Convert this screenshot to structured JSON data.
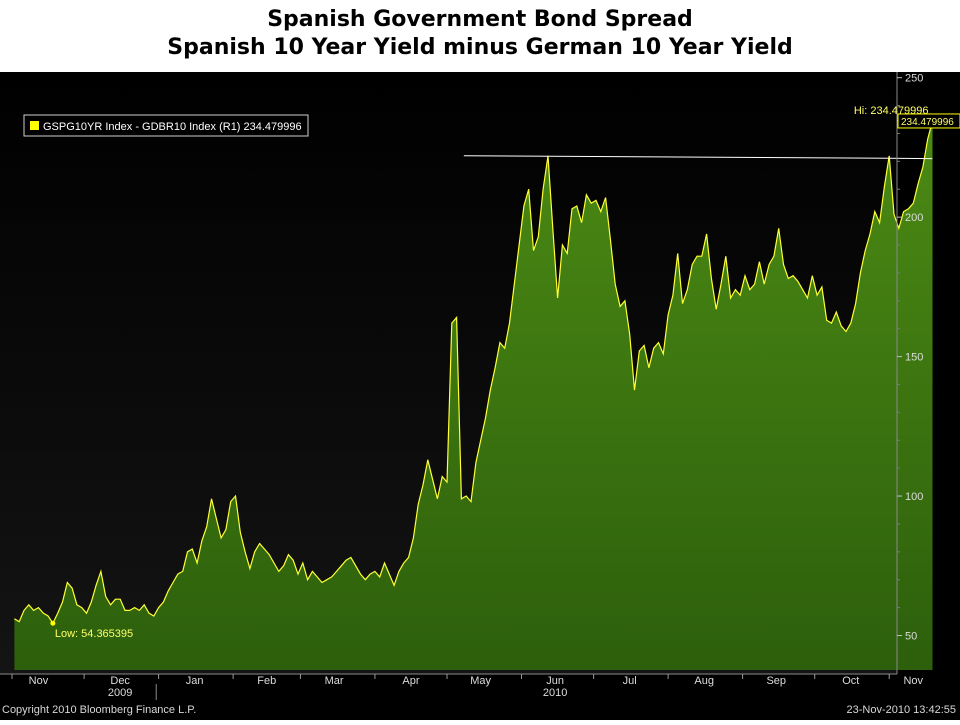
{
  "title": {
    "line1": "Spanish Government Bond Spread",
    "line2": "Spanish 10 Year Yield minus German 10 Year Yield"
  },
  "legend": {
    "label": "GSPG10YR Index - GDBR10 Index (R1) 234.479996",
    "color": "#ffff00"
  },
  "annotations": {
    "low": "Low: 54.365395",
    "hi": "Hi: 234.479996",
    "last_value": "234.479996"
  },
  "footer": {
    "copyright": "Copyright 2010 Bloomberg Finance L.P.",
    "timestamp": "23-Nov-2010 13:42:55"
  },
  "colors": {
    "area": "#3f7a12",
    "line": "#ffff33",
    "background": "#000000",
    "trendline": "#ffffff"
  },
  "chart_data": {
    "type": "area",
    "x_tick_labels": [
      "Nov",
      "Dec",
      "Jan",
      "Feb",
      "Mar",
      "Apr",
      "May",
      "Jun",
      "Jul",
      "Aug",
      "Sep",
      "Oct",
      "Nov"
    ],
    "year_labels": [
      "2009",
      "2010"
    ],
    "y_ticks": [
      50,
      100,
      150,
      200,
      250
    ],
    "ylim": [
      40,
      252
    ],
    "axis_side": "right",
    "grid": false,
    "legend_position": "top-left",
    "trendline": {
      "start": [
        "2010-05-08",
        222
      ],
      "end": [
        "2010-11-19",
        221
      ]
    },
    "series": [
      {
        "values": [
          [
            "2009-11-02",
            56
          ],
          [
            "2009-11-04",
            55
          ],
          [
            "2009-11-06",
            59
          ],
          [
            "2009-11-08",
            61
          ],
          [
            "2009-11-10",
            59
          ],
          [
            "2009-11-12",
            60
          ],
          [
            "2009-11-14",
            58
          ],
          [
            "2009-11-16",
            57
          ],
          [
            "2009-11-18",
            54.4
          ],
          [
            "2009-11-20",
            58
          ],
          [
            "2009-11-22",
            62
          ],
          [
            "2009-11-24",
            69
          ],
          [
            "2009-11-26",
            67
          ],
          [
            "2009-11-28",
            61
          ],
          [
            "2009-11-30",
            60
          ],
          [
            "2009-12-02",
            58
          ],
          [
            "2009-12-04",
            62
          ],
          [
            "2009-12-06",
            68
          ],
          [
            "2009-12-08",
            73
          ],
          [
            "2009-12-10",
            64
          ],
          [
            "2009-12-12",
            61
          ],
          [
            "2009-12-14",
            63
          ],
          [
            "2009-12-16",
            63
          ],
          [
            "2009-12-18",
            59
          ],
          [
            "2009-12-20",
            59
          ],
          [
            "2009-12-22",
            60
          ],
          [
            "2009-12-24",
            59
          ],
          [
            "2009-12-26",
            61
          ],
          [
            "2009-12-28",
            58
          ],
          [
            "2009-12-30",
            57
          ],
          [
            "2010-01-01",
            60
          ],
          [
            "2010-01-03",
            62
          ],
          [
            "2010-01-05",
            66
          ],
          [
            "2010-01-07",
            69
          ],
          [
            "2010-01-09",
            72
          ],
          [
            "2010-01-11",
            73
          ],
          [
            "2010-01-13",
            80
          ],
          [
            "2010-01-15",
            81
          ],
          [
            "2010-01-17",
            76
          ],
          [
            "2010-01-19",
            84
          ],
          [
            "2010-01-21",
            89
          ],
          [
            "2010-01-23",
            99
          ],
          [
            "2010-01-25",
            92
          ],
          [
            "2010-01-27",
            85
          ],
          [
            "2010-01-29",
            88
          ],
          [
            "2010-01-31",
            98
          ],
          [
            "2010-02-02",
            100
          ],
          [
            "2010-02-04",
            87
          ],
          [
            "2010-02-06",
            80
          ],
          [
            "2010-02-08",
            74
          ],
          [
            "2010-02-10",
            80
          ],
          [
            "2010-02-12",
            83
          ],
          [
            "2010-02-14",
            81
          ],
          [
            "2010-02-16",
            79
          ],
          [
            "2010-02-18",
            76
          ],
          [
            "2010-02-20",
            73
          ],
          [
            "2010-02-22",
            75
          ],
          [
            "2010-02-24",
            79
          ],
          [
            "2010-02-26",
            77
          ],
          [
            "2010-02-28",
            72
          ],
          [
            "2010-03-02",
            76
          ],
          [
            "2010-03-04",
            70
          ],
          [
            "2010-03-06",
            73
          ],
          [
            "2010-03-08",
            71
          ],
          [
            "2010-03-10",
            69
          ],
          [
            "2010-03-12",
            70
          ],
          [
            "2010-03-14",
            71
          ],
          [
            "2010-03-16",
            73
          ],
          [
            "2010-03-18",
            75
          ],
          [
            "2010-03-20",
            77
          ],
          [
            "2010-03-22",
            78
          ],
          [
            "2010-03-24",
            75
          ],
          [
            "2010-03-26",
            72
          ],
          [
            "2010-03-28",
            70
          ],
          [
            "2010-03-30",
            72
          ],
          [
            "2010-04-01",
            73
          ],
          [
            "2010-04-03",
            71
          ],
          [
            "2010-04-05",
            76
          ],
          [
            "2010-04-07",
            72
          ],
          [
            "2010-04-09",
            68
          ],
          [
            "2010-04-11",
            73
          ],
          [
            "2010-04-13",
            76
          ],
          [
            "2010-04-15",
            78
          ],
          [
            "2010-04-17",
            85
          ],
          [
            "2010-04-19",
            97
          ],
          [
            "2010-04-21",
            104
          ],
          [
            "2010-04-23",
            113
          ],
          [
            "2010-04-25",
            106
          ],
          [
            "2010-04-27",
            99
          ],
          [
            "2010-04-29",
            107
          ],
          [
            "2010-05-01",
            105
          ],
          [
            "2010-05-03",
            162
          ],
          [
            "2010-05-05",
            164
          ],
          [
            "2010-05-07",
            99
          ],
          [
            "2010-05-09",
            100
          ],
          [
            "2010-05-11",
            98
          ],
          [
            "2010-05-13",
            112
          ],
          [
            "2010-05-15",
            120
          ],
          [
            "2010-05-17",
            128
          ],
          [
            "2010-05-19",
            138
          ],
          [
            "2010-05-21",
            146
          ],
          [
            "2010-05-23",
            155
          ],
          [
            "2010-05-25",
            153
          ],
          [
            "2010-05-27",
            162
          ],
          [
            "2010-05-29",
            176
          ],
          [
            "2010-05-31",
            190
          ],
          [
            "2010-06-02",
            204
          ],
          [
            "2010-06-04",
            210
          ],
          [
            "2010-06-06",
            188
          ],
          [
            "2010-06-08",
            193
          ],
          [
            "2010-06-10",
            210
          ],
          [
            "2010-06-12",
            222
          ],
          [
            "2010-06-14",
            196
          ],
          [
            "2010-06-16",
            171
          ],
          [
            "2010-06-18",
            190
          ],
          [
            "2010-06-20",
            187
          ],
          [
            "2010-06-22",
            203
          ],
          [
            "2010-06-24",
            204
          ],
          [
            "2010-06-26",
            198
          ],
          [
            "2010-06-28",
            208
          ],
          [
            "2010-06-30",
            205
          ],
          [
            "2010-07-02",
            206
          ],
          [
            "2010-07-04",
            202
          ],
          [
            "2010-07-06",
            207
          ],
          [
            "2010-07-08",
            192
          ],
          [
            "2010-07-10",
            176
          ],
          [
            "2010-07-12",
            168
          ],
          [
            "2010-07-14",
            170
          ],
          [
            "2010-07-16",
            158
          ],
          [
            "2010-07-18",
            138
          ],
          [
            "2010-07-20",
            152
          ],
          [
            "2010-07-22",
            154
          ],
          [
            "2010-07-24",
            146
          ],
          [
            "2010-07-26",
            153
          ],
          [
            "2010-07-28",
            155
          ],
          [
            "2010-07-30",
            151
          ],
          [
            "2010-08-01",
            165
          ],
          [
            "2010-08-03",
            172
          ],
          [
            "2010-08-05",
            187
          ],
          [
            "2010-08-07",
            169
          ],
          [
            "2010-08-09",
            174
          ],
          [
            "2010-08-11",
            183
          ],
          [
            "2010-08-13",
            186
          ],
          [
            "2010-08-15",
            186
          ],
          [
            "2010-08-17",
            194
          ],
          [
            "2010-08-19",
            178
          ],
          [
            "2010-08-21",
            167
          ],
          [
            "2010-08-23",
            176
          ],
          [
            "2010-08-25",
            186
          ],
          [
            "2010-08-27",
            171
          ],
          [
            "2010-08-29",
            174
          ],
          [
            "2010-08-31",
            172
          ],
          [
            "2010-09-02",
            179
          ],
          [
            "2010-09-04",
            174
          ],
          [
            "2010-09-06",
            176
          ],
          [
            "2010-09-08",
            184
          ],
          [
            "2010-09-10",
            176
          ],
          [
            "2010-09-12",
            183
          ],
          [
            "2010-09-14",
            186
          ],
          [
            "2010-09-16",
            196
          ],
          [
            "2010-09-18",
            183
          ],
          [
            "2010-09-20",
            178
          ],
          [
            "2010-09-22",
            179
          ],
          [
            "2010-09-24",
            177
          ],
          [
            "2010-09-26",
            174
          ],
          [
            "2010-09-28",
            171
          ],
          [
            "2010-09-30",
            179
          ],
          [
            "2010-10-02",
            172
          ],
          [
            "2010-10-04",
            175
          ],
          [
            "2010-10-06",
            163
          ],
          [
            "2010-10-08",
            162
          ],
          [
            "2010-10-10",
            166
          ],
          [
            "2010-10-12",
            161
          ],
          [
            "2010-10-14",
            159
          ],
          [
            "2010-10-16",
            162
          ],
          [
            "2010-10-18",
            169
          ],
          [
            "2010-10-20",
            180
          ],
          [
            "2010-10-22",
            188
          ],
          [
            "2010-10-24",
            194
          ],
          [
            "2010-10-26",
            202
          ],
          [
            "2010-10-28",
            198
          ],
          [
            "2010-10-30",
            211
          ],
          [
            "2010-11-01",
            222
          ],
          [
            "2010-11-03",
            201
          ],
          [
            "2010-11-05",
            196
          ],
          [
            "2010-11-07",
            202
          ],
          [
            "2010-11-09",
            203
          ],
          [
            "2010-11-11",
            205
          ],
          [
            "2010-11-13",
            212
          ],
          [
            "2010-11-15",
            218
          ],
          [
            "2010-11-17",
            228
          ],
          [
            "2010-11-19",
            234.48
          ]
        ]
      }
    ]
  }
}
